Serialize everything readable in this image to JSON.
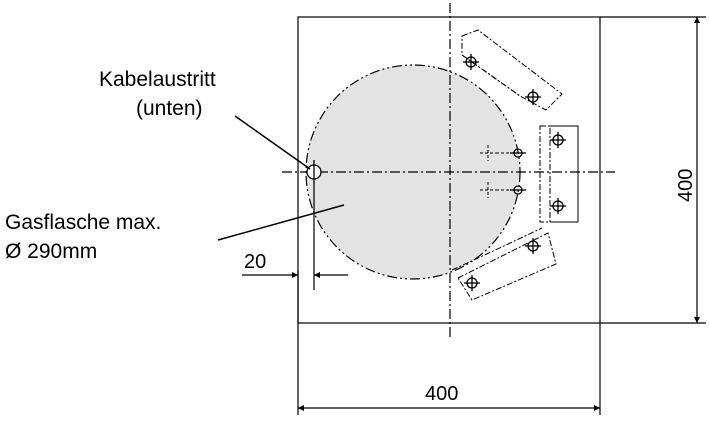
{
  "labels": {
    "cable_exit_line1": "Kabelaustritt",
    "cable_exit_line2": "(unten)",
    "gas_bottle_line1": "Gasflasche max.",
    "gas_bottle_line2": "Ø 290mm"
  },
  "dimensions": {
    "offset": "20",
    "width": "400",
    "height": "400"
  },
  "colors": {
    "line": "#000000",
    "circle_fill": "#e3e3e3"
  }
}
